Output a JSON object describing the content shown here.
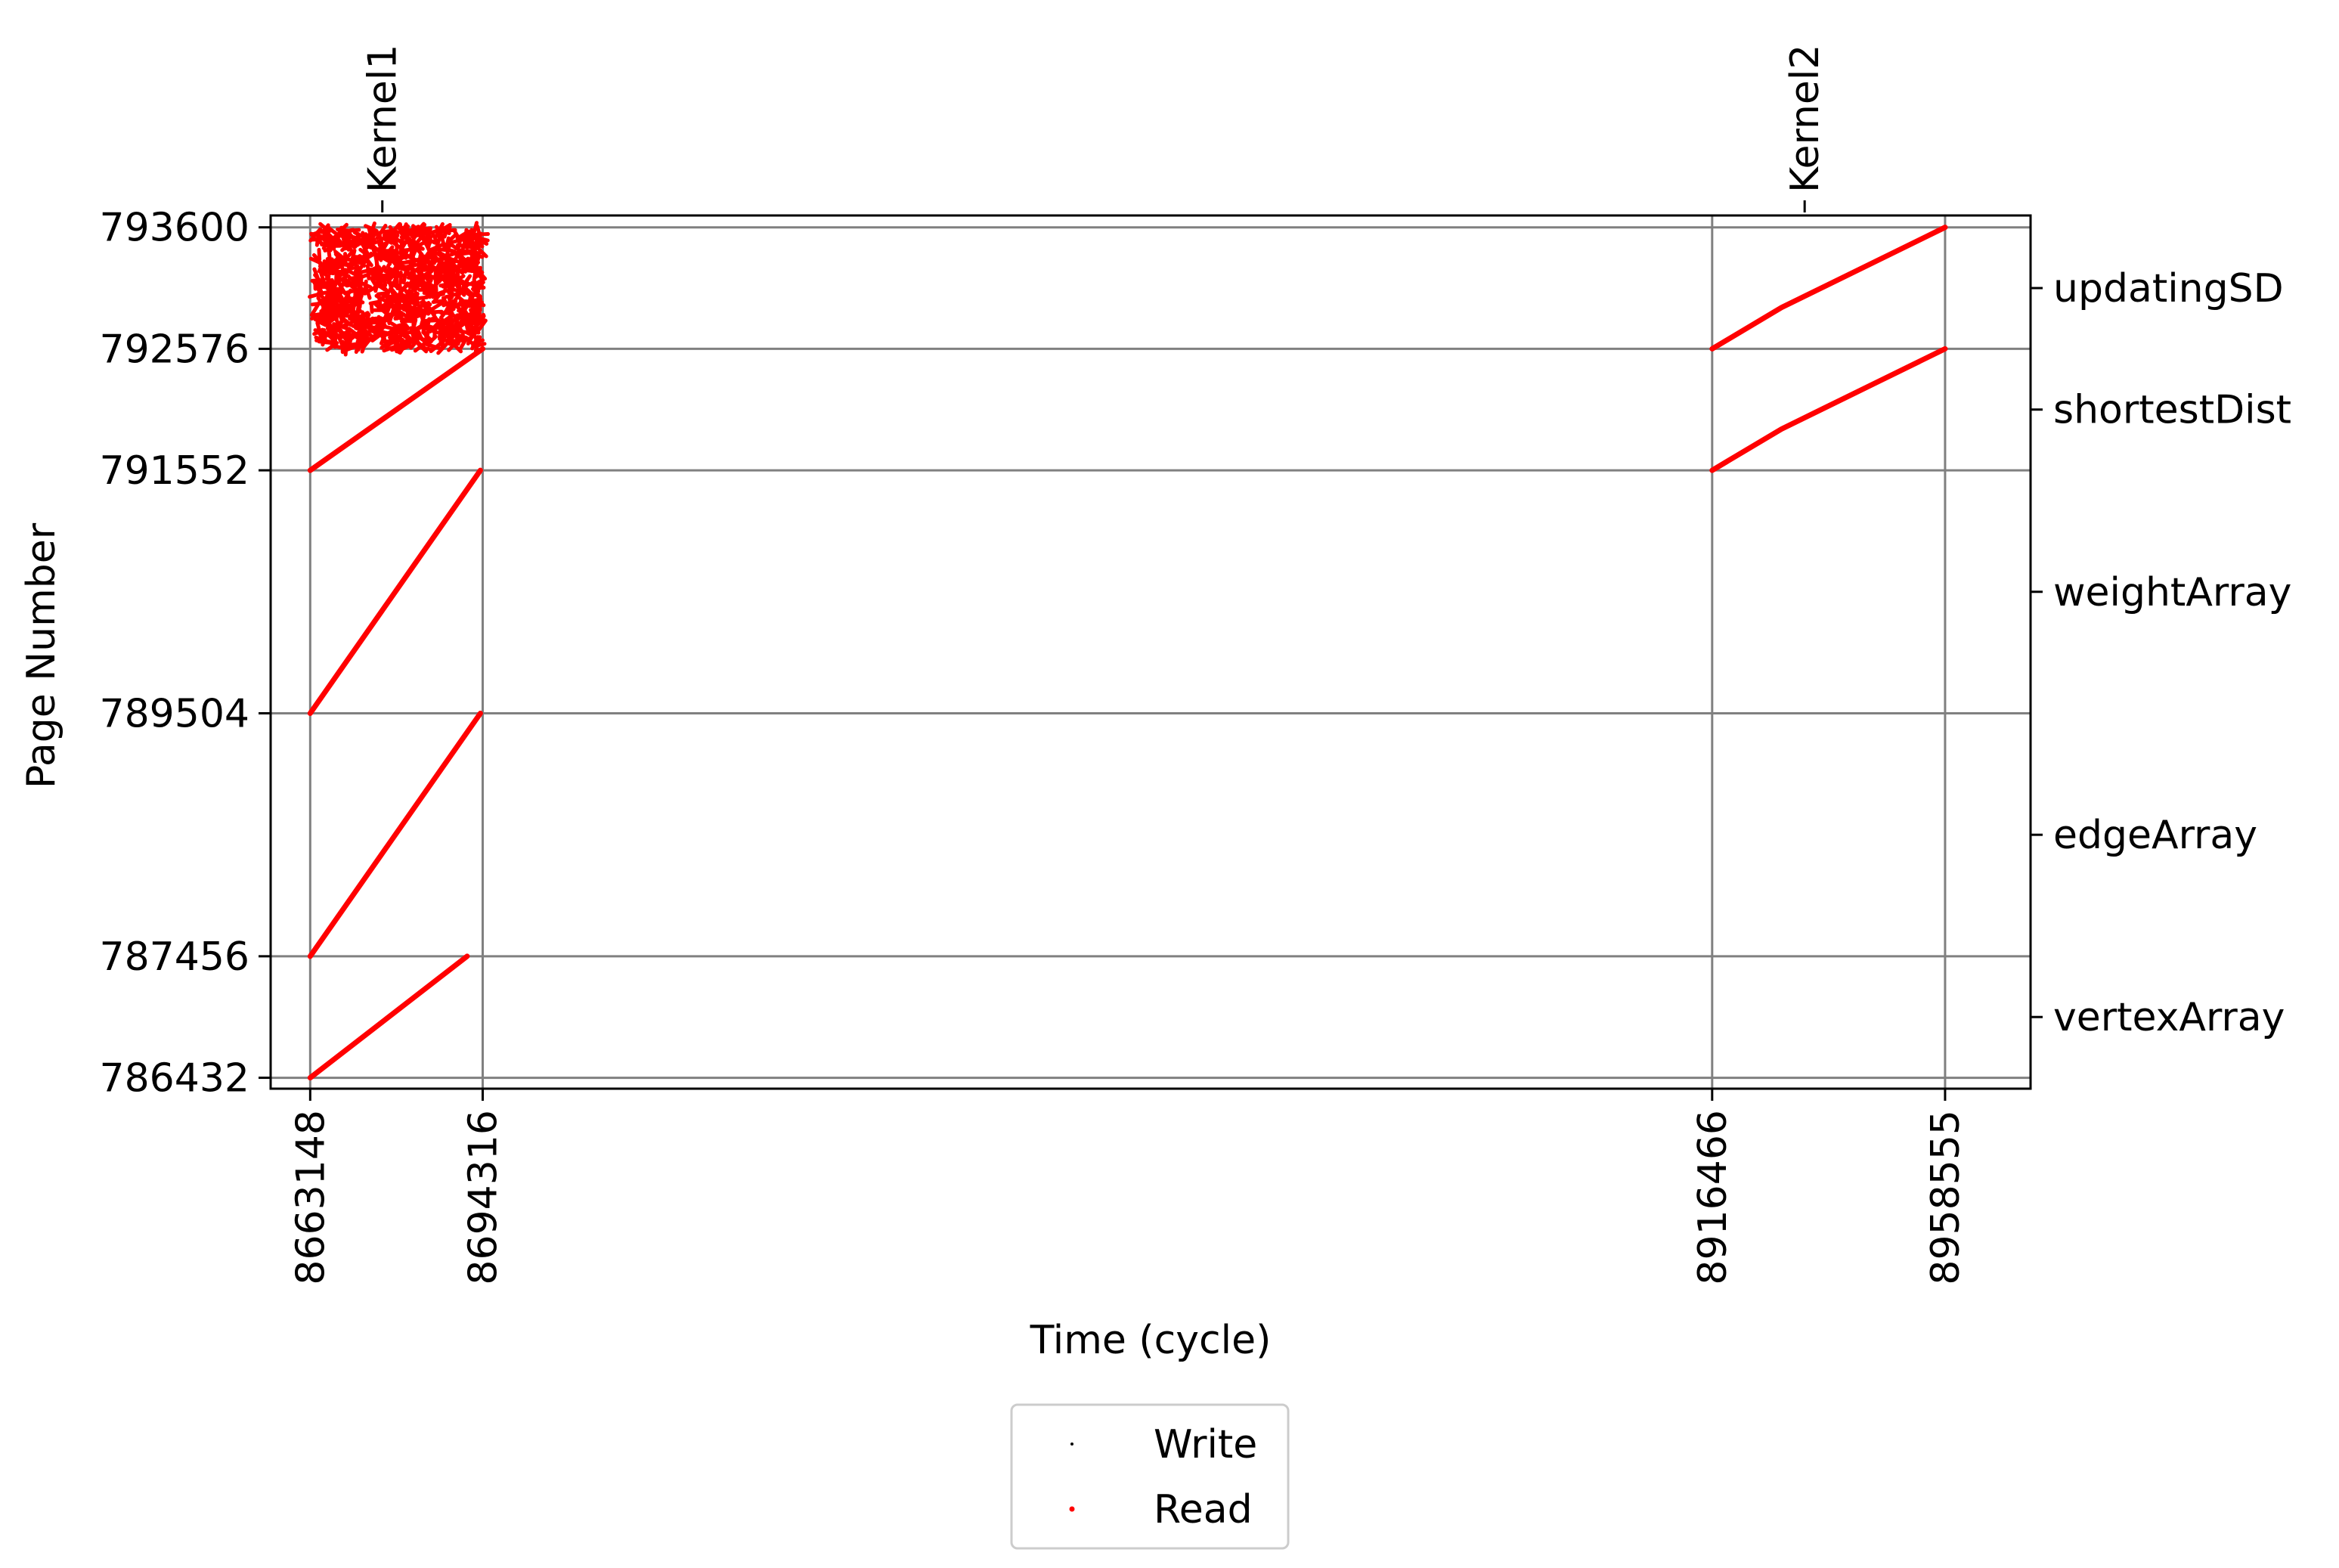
{
  "chart_data": {
    "type": "scatter",
    "title": "",
    "xlabel": "Time (cycle)",
    "ylabel": "Page Number",
    "xlim": [
      8656000,
      8974000
    ],
    "ylim": [
      786340,
      793700
    ],
    "grid": true,
    "x_ticks": [
      8663148,
      8694316,
      8916466,
      8958555
    ],
    "y_ticks": [
      786432,
      787456,
      789504,
      791552,
      792576,
      793600
    ],
    "top_annotations": [
      {
        "label": "Kernel1",
        "x": 8677000
      },
      {
        "label": "Kernel2",
        "x": 8934000
      }
    ],
    "right_labels": [
      {
        "label": "updatingSD",
        "y": 793088
      },
      {
        "label": "shortestDist",
        "y": 792064
      },
      {
        "label": "weightArray",
        "y": 790528
      },
      {
        "label": "edgeArray",
        "y": 788480
      },
      {
        "label": "vertexArray",
        "y": 786944
      }
    ],
    "legend": {
      "placement": "bottom-center",
      "entries": [
        {
          "label": "Write",
          "color": "#000000",
          "marker": "point"
        },
        {
          "label": "Read",
          "color": "#ff0000",
          "marker": "point"
        }
      ]
    },
    "series": [
      {
        "name": "Read",
        "color": "#ff0000",
        "segments": [
          {
            "x": [
              8663148,
              8691500
            ],
            "y": [
              786432,
              787456
            ]
          },
          {
            "x": [
              8663148,
              8693900
            ],
            "y": [
              787456,
              789504
            ]
          },
          {
            "x": [
              8663148,
              8693900
            ],
            "y": [
              789504,
              791552
            ]
          },
          {
            "x": [
              8663148,
              8694316
            ],
            "y": [
              791552,
              792576
            ]
          },
          {
            "x": [
              8916466,
              8929000,
              8958555
            ],
            "y": [
              791552,
              791900,
              792576
            ]
          },
          {
            "x": [
              8916466,
              8929000,
              8958555
            ],
            "y": [
              792576,
              792924,
              793600
            ]
          }
        ],
        "random_region": {
          "x": [
            8664000,
            8694316
          ],
          "y": [
            792576,
            793600
          ],
          "count": 900
        }
      },
      {
        "name": "Write",
        "color": "#000000",
        "segments": []
      }
    ]
  }
}
